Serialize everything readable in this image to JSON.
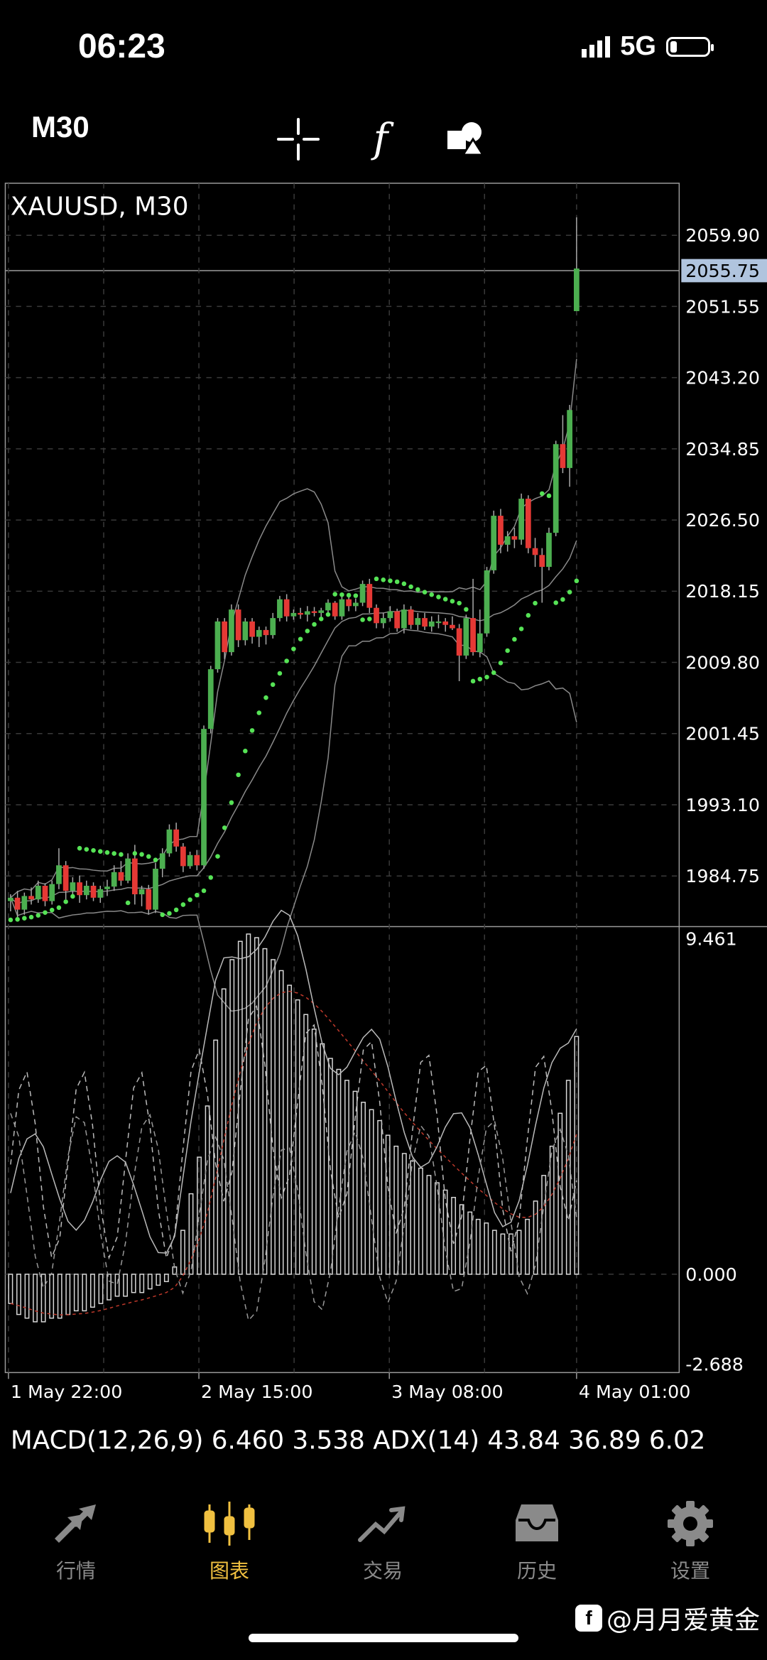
{
  "status": {
    "time": "06:23",
    "network": "5G"
  },
  "toolbar": {
    "timeframe": "M30"
  },
  "chart_data": [
    {
      "type": "candlestick",
      "title": "XAUUSD, M30",
      "current_price": "2055.75",
      "ylim": [
        1979,
        2066
      ],
      "y_ticks": [
        "2059.90",
        "2051.55",
        "2043.20",
        "2034.85",
        "2026.50",
        "2018.15",
        "2009.80",
        "2001.45",
        "1993.10",
        "1984.75"
      ],
      "x_ticks": [
        "1 May 22:00",
        "2 May 15:00",
        "3 May 08:00",
        "4 May 01:00"
      ],
      "colors": {
        "bull": "#4caf50",
        "bear": "#e53935",
        "sar": "#56e356",
        "bands": "#8a8a8a",
        "grid": "#3a3a3a",
        "highlight": "#b0c4de"
      },
      "candles_ohlc": [
        [
          1981.8,
          1982.6,
          1980.6,
          1982.2
        ],
        [
          1982.2,
          1983.0,
          1979.8,
          1980.8
        ],
        [
          1980.8,
          1982.8,
          1980.2,
          1982.4
        ],
        [
          1982.4,
          1983.4,
          1981.4,
          1982.0
        ],
        [
          1982.0,
          1984.2,
          1981.6,
          1983.6
        ],
        [
          1983.6,
          1983.9,
          1981.2,
          1981.8
        ],
        [
          1981.8,
          1984.2,
          1981.4,
          1983.8
        ],
        [
          1983.8,
          1988.0,
          1983.2,
          1986.0
        ],
        [
          1986.0,
          1986.5,
          1982.0,
          1983.0
        ],
        [
          1983.0,
          1984.6,
          1982.4,
          1984.0
        ],
        [
          1984.0,
          1984.8,
          1981.6,
          1982.5
        ],
        [
          1982.5,
          1984.2,
          1982.0,
          1983.6
        ],
        [
          1983.6,
          1984.0,
          1981.8,
          1982.2
        ],
        [
          1982.2,
          1983.6,
          1981.6,
          1983.2
        ],
        [
          1983.2,
          1984.3,
          1982.4,
          1983.5
        ],
        [
          1983.5,
          1986.0,
          1983.0,
          1985.2
        ],
        [
          1985.2,
          1986.5,
          1983.6,
          1984.2
        ],
        [
          1984.2,
          1987.4,
          1983.9,
          1986.8
        ],
        [
          1986.8,
          1988.4,
          1981.4,
          1982.6
        ],
        [
          1982.6,
          1983.6,
          1981.2,
          1983.2
        ],
        [
          1983.2,
          1983.7,
          1980.2,
          1980.8
        ],
        [
          1980.8,
          1986.3,
          1980.4,
          1985.6
        ],
        [
          1985.6,
          1988.0,
          1984.6,
          1987.4
        ],
        [
          1987.4,
          1990.8,
          1987.0,
          1990.2
        ],
        [
          1990.2,
          1991.0,
          1987.6,
          1988.2
        ],
        [
          1988.2,
          1988.6,
          1985.2,
          1985.9
        ],
        [
          1985.9,
          1987.6,
          1985.6,
          1987.2
        ],
        [
          1987.2,
          1987.8,
          1985.4,
          1986.0
        ],
        [
          1986.0,
          2002.4,
          1985.6,
          2002.0
        ],
        [
          2002.0,
          2009.4,
          2001.5,
          2009.0
        ],
        [
          2009.0,
          2015.0,
          2008.6,
          2014.6
        ],
        [
          2014.6,
          2015.0,
          2010.2,
          2011.0
        ],
        [
          2011.0,
          2016.6,
          2010.6,
          2016.0
        ],
        [
          2016.0,
          2016.6,
          2011.6,
          2012.4
        ],
        [
          2012.4,
          2015.0,
          2011.8,
          2014.6
        ],
        [
          2014.6,
          2015.0,
          2012.0,
          2012.8
        ],
        [
          2012.8,
          2014.0,
          2011.6,
          2013.6
        ],
        [
          2013.6,
          2014.0,
          2011.9,
          2013.0
        ],
        [
          2013.0,
          2015.6,
          2012.6,
          2015.0
        ],
        [
          2015.0,
          2017.6,
          2014.6,
          2017.2
        ],
        [
          2017.2,
          2017.8,
          2014.6,
          2015.2
        ],
        [
          2015.2,
          2016.0,
          2014.8,
          2015.6
        ],
        [
          2015.6,
          2016.2,
          2014.9,
          2015.4
        ],
        [
          2015.4,
          2016.4,
          2014.6,
          2015.8
        ],
        [
          2015.8,
          2016.3,
          2015.2,
          2015.6
        ],
        [
          2015.6,
          2016.2,
          2014.9,
          2015.9
        ],
        [
          2015.9,
          2017.2,
          2015.6,
          2016.8
        ],
        [
          2016.8,
          2017.0,
          2014.8,
          2015.2
        ],
        [
          2015.2,
          2017.6,
          2014.8,
          2017.2
        ],
        [
          2017.2,
          2017.6,
          2015.8,
          2016.4
        ],
        [
          2016.4,
          2017.3,
          2015.8,
          2016.8
        ],
        [
          2016.8,
          2019.4,
          2016.4,
          2019.0
        ],
        [
          2019.0,
          2019.6,
          2015.6,
          2016.2
        ],
        [
          2016.2,
          2016.6,
          2013.8,
          2014.4
        ],
        [
          2014.4,
          2015.6,
          2013.8,
          2015.0
        ],
        [
          2015.0,
          2016.4,
          2014.6,
          2015.8
        ],
        [
          2015.8,
          2016.1,
          2013.4,
          2013.8
        ],
        [
          2013.8,
          2016.6,
          2013.2,
          2016.0
        ],
        [
          2016.0,
          2016.4,
          2013.7,
          2014.2
        ],
        [
          2014.2,
          2015.6,
          2013.6,
          2015.0
        ],
        [
          2015.0,
          2015.6,
          2013.6,
          2014.0
        ],
        [
          2014.0,
          2015.2,
          2013.4,
          2014.6
        ],
        [
          2014.6,
          2015.4,
          2013.8,
          2014.6
        ],
        [
          2014.6,
          2015.0,
          2013.4,
          2014.2
        ],
        [
          2014.2,
          2015.2,
          2013.6,
          2013.8
        ],
        [
          2013.8,
          2014.3,
          2007.6,
          2010.6
        ],
        [
          2010.6,
          2015.4,
          2010.2,
          2015.0
        ],
        [
          2015.0,
          2019.6,
          2010.6,
          2011.0
        ],
        [
          2011.0,
          2016.0,
          2010.4,
          2013.2
        ],
        [
          2013.2,
          2021.0,
          2012.8,
          2020.6
        ],
        [
          2020.6,
          2027.6,
          2020.2,
          2027.0
        ],
        [
          2027.0,
          2027.8,
          2022.6,
          2023.6
        ],
        [
          2023.6,
          2025.2,
          2022.8,
          2024.6
        ],
        [
          2024.6,
          2025.6,
          2023.2,
          2024.2
        ],
        [
          2024.2,
          2029.6,
          2023.6,
          2029.0
        ],
        [
          2029.0,
          2029.4,
          2022.6,
          2023.2
        ],
        [
          2023.2,
          2024.4,
          2021.0,
          2022.4
        ],
        [
          2022.4,
          2023.2,
          2016.8,
          2021.0
        ],
        [
          2021.0,
          2025.6,
          2020.6,
          2025.0
        ],
        [
          2025.0,
          2035.8,
          2024.6,
          2035.4
        ],
        [
          2035.4,
          2038.8,
          2032.0,
          2032.6
        ],
        [
          2032.6,
          2040.0,
          2030.4,
          2039.4
        ],
        [
          2051.0,
          2062.0,
          2051.0,
          2056.0
        ]
      ],
      "indicators": [
        "Bollinger Bands",
        "Parabolic SAR"
      ]
    },
    {
      "type": "line",
      "title": "MACD(12,26,9) 6.460 3.538 ADX(14) 43.84 36.89 6.02",
      "ylim": [
        -2.688,
        9.461
      ],
      "y_ticks": [
        "9.461",
        "0.000",
        "-2.688"
      ],
      "macd_hist": [
        -0.8,
        -1.1,
        -1.2,
        -1.3,
        -1.3,
        -1.2,
        -1.2,
        -1.1,
        -1.0,
        -1.0,
        -0.9,
        -0.8,
        -0.7,
        -0.6,
        -0.6,
        -0.5,
        -0.5,
        -0.4,
        -0.3,
        -0.2,
        0.2,
        1.2,
        2.2,
        3.2,
        4.6,
        6.4,
        7.8,
        8.6,
        9.1,
        9.3,
        9.2,
        8.9,
        8.6,
        8.3,
        7.9,
        7.5,
        7.1,
        6.7,
        6.3,
        5.9,
        5.6,
        5.3,
        5.0,
        4.7,
        4.5,
        4.2,
        3.8,
        3.5,
        3.3,
        3.1,
        2.9,
        2.7,
        2.5,
        2.3,
        2.1,
        1.9,
        1.7,
        1.5,
        1.4,
        1.2,
        1.1,
        1.1,
        1.2,
        1.5,
        2.0,
        2.7,
        3.5,
        4.4,
        5.3,
        6.5
      ]
    }
  ],
  "tabs": [
    {
      "label": "行情",
      "icon": "quotes-icon"
    },
    {
      "label": "图表",
      "icon": "candlestick-icon",
      "active": true
    },
    {
      "label": "交易",
      "icon": "trade-icon"
    },
    {
      "label": "历史",
      "icon": "history-icon"
    },
    {
      "label": "设置",
      "icon": "gear-icon"
    }
  ],
  "watermark": "@月月爱黄金"
}
